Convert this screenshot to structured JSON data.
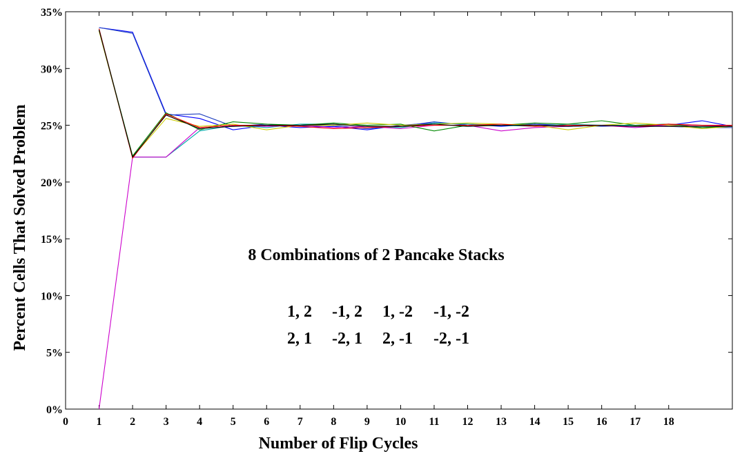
{
  "chart_data": {
    "type": "line",
    "title": "",
    "xlabel": "Number of Flip Cycles",
    "ylabel": "Percent Cells That Solved Problem",
    "xlim": [
      0,
      19.9
    ],
    "ylim": [
      0,
      35
    ],
    "x_ticks": [
      "0",
      "1",
      "2",
      "3",
      "4",
      "5",
      "6",
      "7",
      "8",
      "9",
      "10",
      "11",
      "12",
      "13",
      "14",
      "15",
      "16",
      "17",
      "18"
    ],
    "y_ticks": [
      "0%",
      "5%",
      "10%",
      "15%",
      "20%",
      "25%",
      "30%",
      "35%"
    ],
    "grid": false,
    "legend": "none",
    "annotation": {
      "title": "8 Combinations of 2 Pancake Stacks",
      "row1": [
        "1, 2",
        "-1, 2",
        "1, -2",
        "-1, -2"
      ],
      "row2": [
        "2, 1",
        "-2, 1",
        "2, -1",
        "-2, -1"
      ]
    },
    "x": [
      1,
      2,
      3,
      4,
      5,
      6,
      7,
      8,
      9,
      10,
      11,
      12,
      13,
      14,
      15,
      16,
      17,
      18,
      19,
      19.9
    ],
    "series": [
      {
        "color": "#0000ff",
        "values": [
          33.6,
          33.2,
          26.0,
          25.6,
          24.6,
          25.0,
          24.8,
          24.9,
          24.6,
          25.0,
          25.2,
          25.1,
          24.9,
          25.1,
          24.9,
          25.0,
          24.9,
          25.0,
          25.4,
          24.9
        ]
      },
      {
        "color": "#1f3fbf",
        "values": [
          33.6,
          33.1,
          25.9,
          26.0,
          24.9,
          25.1,
          24.9,
          25.0,
          24.7,
          24.9,
          25.3,
          25.0,
          25.0,
          25.1,
          25.0,
          24.9,
          25.0,
          24.9,
          24.8,
          24.8
        ]
      },
      {
        "color": "#00aaaa",
        "values": [
          33.5,
          22.2,
          22.2,
          24.5,
          25.0,
          24.8,
          25.1,
          25.1,
          24.9,
          24.8,
          25.2,
          25.1,
          25.0,
          24.9,
          25.1,
          25.0,
          25.0,
          25.1,
          25.0,
          24.9
        ]
      },
      {
        "color": "#cc00cc",
        "values": [
          0,
          22.2,
          22.2,
          24.8,
          25.0,
          24.9,
          25.0,
          24.8,
          24.9,
          24.7,
          25.0,
          25.0,
          24.5,
          24.8,
          24.9,
          25.0,
          24.8,
          25.0,
          25.0,
          24.9
        ]
      },
      {
        "color": "#008800",
        "values": [
          33.4,
          22.3,
          26.1,
          24.6,
          25.3,
          25.1,
          25.0,
          25.2,
          25.0,
          25.1,
          24.5,
          25.0,
          25.0,
          25.2,
          25.1,
          25.4,
          25.0,
          25.1,
          24.8,
          24.9
        ]
      },
      {
        "color": "#cccc00",
        "values": [
          33.3,
          22.2,
          25.6,
          24.9,
          25.1,
          24.6,
          25.0,
          25.0,
          25.2,
          25.0,
          25.1,
          25.2,
          25.1,
          25.0,
          24.6,
          25.0,
          25.2,
          25.0,
          24.7,
          24.9
        ]
      },
      {
        "color": "#ff0000",
        "values": [
          33.5,
          22.1,
          26.0,
          24.8,
          25.0,
          25.0,
          24.9,
          24.7,
          24.8,
          24.9,
          25.0,
          25.0,
          25.1,
          24.9,
          25.0,
          25.0,
          24.9,
          25.1,
          25.0,
          25.0
        ]
      },
      {
        "color": "#000000",
        "values": [
          33.4,
          22.2,
          25.9,
          24.7,
          24.9,
          25.0,
          25.0,
          25.1,
          24.9,
          24.9,
          25.1,
          24.9,
          25.0,
          25.0,
          24.9,
          25.0,
          24.9,
          24.9,
          24.9,
          24.9
        ]
      }
    ]
  }
}
